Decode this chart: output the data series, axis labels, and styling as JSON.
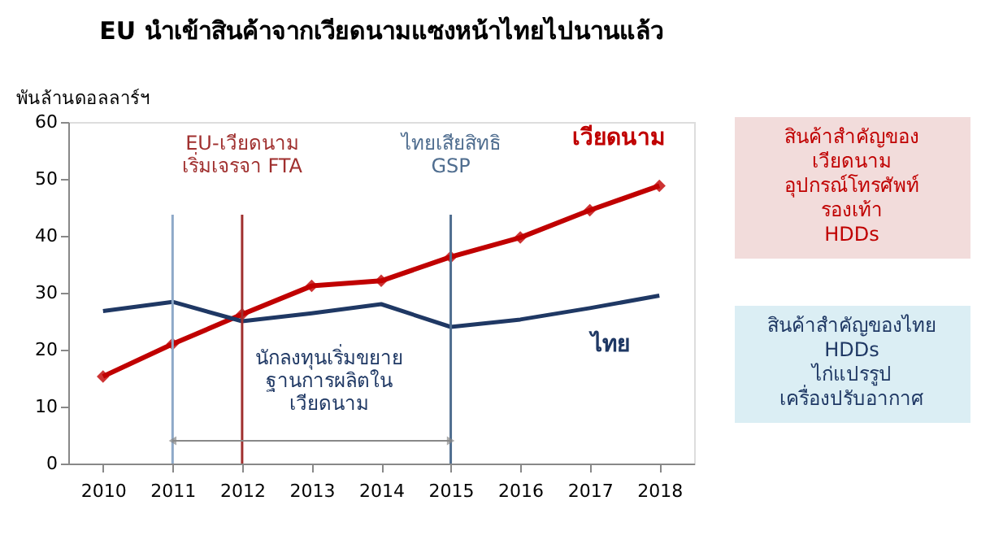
{
  "chart_data": {
    "type": "line",
    "title": "EU นำเข้าสินค้าจากเวียดนามแซงหน้าไทยไปนานแล้ว",
    "ylabel": "พันล้านดอลลาร์ฯ",
    "categories": [
      "2010",
      "2011",
      "2012",
      "2013",
      "2014",
      "2015",
      "2016",
      "2017",
      "2018"
    ],
    "series": [
      {
        "name": "เวียดนาม",
        "color": "#c00000",
        "marker": "diamond",
        "values": [
          15.3,
          21.0,
          26.2,
          31.2,
          32.1,
          36.3,
          39.7,
          44.5,
          48.8
        ]
      },
      {
        "name": "ไทย",
        "color": "#1f3864",
        "marker": "none",
        "values": [
          26.8,
          28.4,
          25.0,
          26.4,
          28.0,
          24.0,
          25.3,
          27.3,
          29.5
        ]
      }
    ],
    "ylim": [
      0,
      60
    ],
    "yticks": [
      0,
      10,
      20,
      30,
      40,
      50,
      60
    ],
    "grid": false,
    "ref_lines": [
      {
        "axis": "x",
        "value": "2011",
        "color": "#8ea9c8"
      },
      {
        "axis": "x",
        "value": "2012",
        "label": "EU-เวียดนาม\nเริ่มเจรจา FTA",
        "color": "#a0302f"
      },
      {
        "axis": "x",
        "value": "2015",
        "label": "ไทยเสียสิทธิ\nGSP",
        "color": "#4f6d8f"
      }
    ],
    "annotations": [
      "นักลงทุนเริ่มขยาย\nฐานการผลิตใน\nเวียดนาม",
      "สินค้าสำคัญของ\nเวียดนาม\nอุปกรณ์โทรศัพท์\nรองเท้า\nHDDs",
      "สินค้าสำคัญของไทย\nHDDs\nไก่แปรรูป\nเครื่องปรับอากาศ"
    ]
  }
}
